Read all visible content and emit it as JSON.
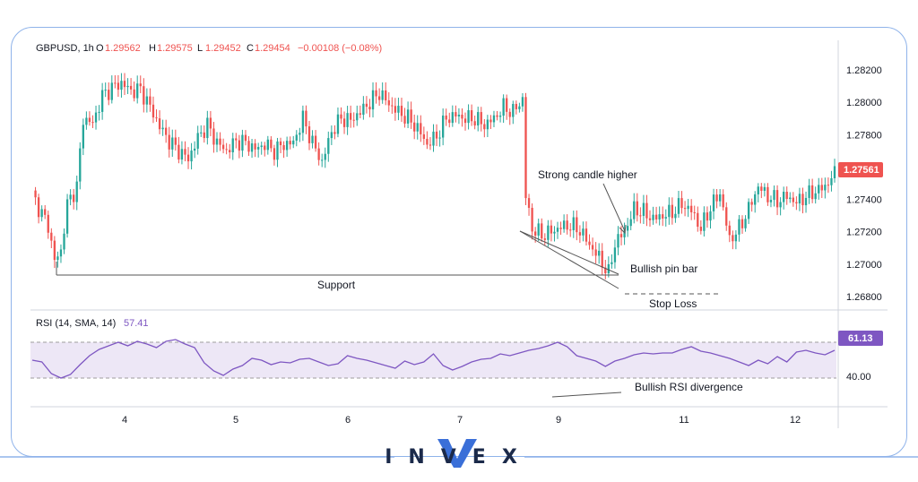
{
  "header": {
    "symbol": "GBPUSD, 1h",
    "o_label": "O",
    "o_value": "1.29562",
    "h_label": "H",
    "h_value": "1.29575",
    "l_label": "L",
    "l_value": "1.29452",
    "c_label": "C",
    "c_value": "1.29454",
    "change": "−0.00108 (−0.08%)"
  },
  "price_axis": {
    "ticks": [
      "1.28200",
      "1.28000",
      "1.27800",
      "1.27600",
      "1.27400",
      "1.27200",
      "1.27000",
      "1.26800"
    ],
    "last_price": "1.27561"
  },
  "time_axis": {
    "ticks": [
      "4",
      "5",
      "6",
      "7",
      "9",
      "11",
      "12"
    ]
  },
  "rsi": {
    "label": "RSI (14, SMA, 14)",
    "sma_value": "57.41",
    "last_value": "61.13",
    "tick": "40.00"
  },
  "annotations": {
    "support": "Support",
    "strong_candle": "Strong candle higher",
    "pin_bar": "Bullish pin bar",
    "stop_loss": "Stop Loss",
    "rsi_divergence": "Bullish RSI divergence"
  },
  "brand": {
    "logo_text": "INVEX"
  },
  "colors": {
    "bull": "#26a69a",
    "bear": "#ef5350",
    "rsi_line": "#7e57c2",
    "rsi_band": "#ede7f6",
    "frame": "#8fb3ea",
    "last_price_bg": "#ef5350",
    "rsi_tag_bg": "#7e57c2",
    "logo_accent": "#3a6fd8"
  },
  "chart_data": [
    {
      "type": "candlestick",
      "title": "GBPUSD, 1h",
      "x_ticks": [
        "4",
        "5",
        "6",
        "7",
        "9",
        "11",
        "12"
      ],
      "ylim": [
        1.2675,
        1.283
      ],
      "y_ticks": [
        1.282,
        1.28,
        1.278,
        1.276,
        1.274,
        1.272,
        1.27,
        1.268
      ],
      "last_price": 1.27561,
      "grid": false,
      "close_path": [
        [
          0,
          1.2743
        ],
        [
          3,
          1.2731
        ],
        [
          5,
          1.2724
        ],
        [
          7,
          1.2702
        ],
        [
          9,
          1.2708
        ],
        [
          11,
          1.2737
        ],
        [
          14,
          1.2748
        ],
        [
          16,
          1.279
        ],
        [
          19,
          1.2787
        ],
        [
          22,
          1.2804
        ],
        [
          25,
          1.2809
        ],
        [
          28,
          1.2812
        ],
        [
          31,
          1.2807
        ],
        [
          34,
          1.2808
        ],
        [
          37,
          1.2797
        ],
        [
          40,
          1.2785
        ],
        [
          43,
          1.2776
        ],
        [
          46,
          1.277
        ],
        [
          49,
          1.2765
        ],
        [
          52,
          1.2778
        ],
        [
          55,
          1.2786
        ],
        [
          58,
          1.2775
        ],
        [
          61,
          1.277
        ],
        [
          64,
          1.2776
        ],
        [
          67,
          1.2775
        ],
        [
          70,
          1.2771
        ],
        [
          73,
          1.2774
        ],
        [
          76,
          1.277
        ],
        [
          79,
          1.2774
        ],
        [
          82,
          1.2775
        ],
        [
          85,
          1.279
        ],
        [
          88,
          1.2775
        ],
        [
          91,
          1.2763
        ],
        [
          94,
          1.2782
        ],
        [
          97,
          1.279
        ],
        [
          100,
          1.2789
        ],
        [
          103,
          1.2794
        ],
        [
          106,
          1.28
        ],
        [
          109,
          1.2806
        ],
        [
          112,
          1.2799
        ],
        [
          115,
          1.2794
        ],
        [
          118,
          1.279
        ],
        [
          121,
          1.2784
        ],
        [
          124,
          1.2774
        ],
        [
          127,
          1.2779
        ],
        [
          130,
          1.279
        ],
        [
          133,
          1.2792
        ],
        [
          136,
          1.279
        ],
        [
          139,
          1.279
        ],
        [
          142,
          1.2786
        ],
        [
          145,
          1.279
        ],
        [
          148,
          1.2797
        ],
        [
          151,
          1.2794
        ],
        [
          154,
          1.2802
        ],
        [
          155,
          1.2742
        ],
        [
          157,
          1.2722
        ],
        [
          160,
          1.2718
        ],
        [
          163,
          1.272
        ],
        [
          166,
          1.2723
        ],
        [
          169,
          1.2724
        ],
        [
          172,
          1.2721
        ],
        [
          175,
          1.2712
        ],
        [
          178,
          1.2704
        ],
        [
          181,
          1.2694
        ],
        [
          183,
          1.2713
        ],
        [
          186,
          1.272
        ],
        [
          189,
          1.2734
        ],
        [
          192,
          1.2732
        ],
        [
          195,
          1.2728
        ],
        [
          198,
          1.273
        ],
        [
          201,
          1.2732
        ],
        [
          204,
          1.2737
        ],
        [
          207,
          1.2733
        ],
        [
          210,
          1.2722
        ],
        [
          213,
          1.2735
        ],
        [
          216,
          1.2744
        ],
        [
          219,
          1.2715
        ],
        [
          222,
          1.2722
        ],
        [
          225,
          1.2734
        ],
        [
          228,
          1.2748
        ],
        [
          231,
          1.2742
        ],
        [
          234,
          1.2739
        ],
        [
          237,
          1.2742
        ],
        [
          240,
          1.2738
        ],
        [
          243,
          1.2742
        ],
        [
          246,
          1.2745
        ],
        [
          249,
          1.2748
        ],
        [
          252,
          1.2756
        ]
      ]
    },
    {
      "type": "line",
      "title": "RSI (14, SMA, 14)",
      "y_ticks": [
        40
      ],
      "ylim": [
        0,
        100
      ],
      "band": [
        30,
        70
      ],
      "last_value": 61.13,
      "series": [
        {
          "name": "RSI (14, SMA, 14)",
          "values": [
            [
              0,
              50
            ],
            [
              3,
              48
            ],
            [
              6,
              35
            ],
            [
              9,
              30
            ],
            [
              12,
              34
            ],
            [
              15,
              45
            ],
            [
              18,
              55
            ],
            [
              21,
              62
            ],
            [
              24,
              66
            ],
            [
              27,
              70
            ],
            [
              30,
              66
            ],
            [
              33,
              71
            ],
            [
              36,
              68
            ],
            [
              39,
              64
            ],
            [
              42,
              71
            ],
            [
              45,
              73
            ],
            [
              48,
              68
            ],
            [
              51,
              64
            ],
            [
              54,
              47
            ],
            [
              57,
              38
            ],
            [
              60,
              33
            ],
            [
              63,
              40
            ],
            [
              66,
              44
            ],
            [
              69,
              52
            ],
            [
              72,
              50
            ],
            [
              75,
              45
            ],
            [
              78,
              48
            ],
            [
              81,
              47
            ],
            [
              84,
              51
            ],
            [
              87,
              52
            ],
            [
              90,
              48
            ],
            [
              93,
              44
            ],
            [
              96,
              46
            ],
            [
              99,
              55
            ],
            [
              102,
              52
            ],
            [
              105,
              50
            ],
            [
              108,
              47
            ],
            [
              111,
              44
            ],
            [
              114,
              41
            ],
            [
              117,
              49
            ],
            [
              120,
              45
            ],
            [
              123,
              48
            ],
            [
              126,
              57
            ],
            [
              129,
              44
            ],
            [
              132,
              39
            ],
            [
              135,
              43
            ],
            [
              138,
              48
            ],
            [
              141,
              51
            ],
            [
              144,
              52
            ],
            [
              147,
              57
            ],
            [
              150,
              55
            ],
            [
              153,
              58
            ],
            [
              156,
              61
            ],
            [
              159,
              63
            ],
            [
              162,
              66
            ],
            [
              165,
              70
            ],
            [
              168,
              65
            ],
            [
              171,
              55
            ],
            [
              174,
              52
            ],
            [
              177,
              49
            ],
            [
              180,
              43
            ],
            [
              183,
              49
            ],
            [
              186,
              52
            ],
            [
              189,
              56
            ],
            [
              192,
              58
            ],
            [
              195,
              57
            ],
            [
              198,
              58
            ],
            [
              201,
              58
            ],
            [
              204,
              62
            ],
            [
              207,
              65
            ],
            [
              210,
              60
            ],
            [
              213,
              58
            ],
            [
              216,
              55
            ],
            [
              219,
              52
            ],
            [
              222,
              48
            ],
            [
              225,
              44
            ],
            [
              228,
              50
            ],
            [
              231,
              46
            ],
            [
              234,
              54
            ],
            [
              237,
              48
            ],
            [
              240,
              59
            ],
            [
              243,
              61
            ],
            [
              246,
              58
            ],
            [
              249,
              56
            ],
            [
              252,
              61
            ]
          ]
        }
      ]
    }
  ]
}
